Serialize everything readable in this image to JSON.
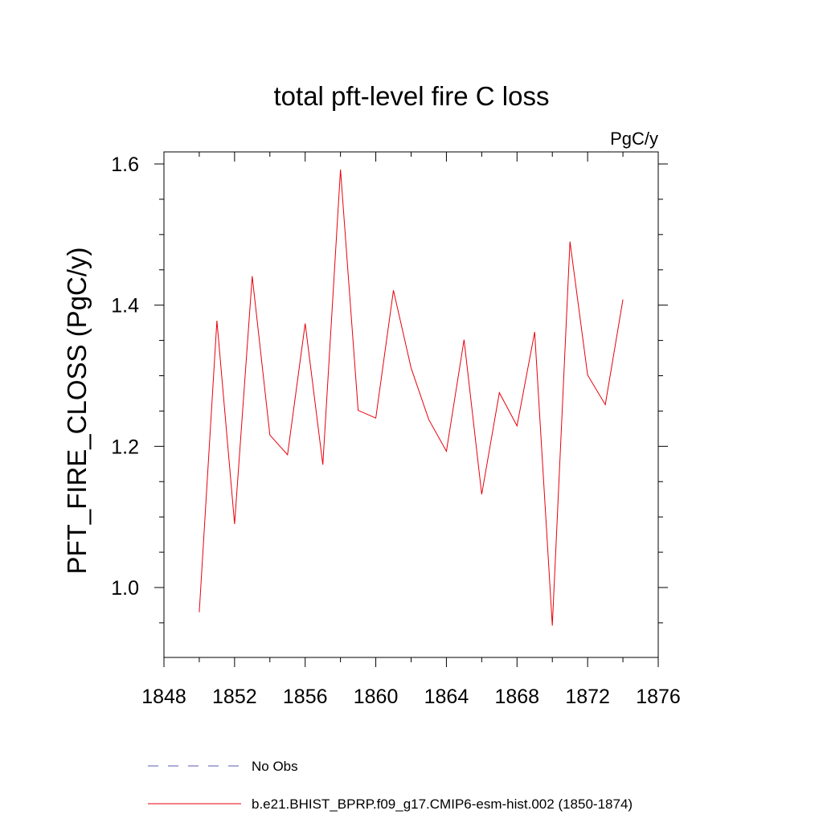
{
  "chart_data": {
    "type": "line",
    "title": "total pft-level fire C loss",
    "units_label": "PgC/y",
    "xlabel": "",
    "ylabel": "PFT_FIRE_CLOSS  (PgC/y)",
    "xlim": [
      1848,
      1876
    ],
    "ylim": [
      0.9,
      1.62
    ],
    "x_ticks": [
      1848,
      1852,
      1856,
      1860,
      1864,
      1868,
      1872,
      1876
    ],
    "x_tick_labels": [
      "1848",
      "1852",
      "1856",
      "1860",
      "1864",
      "1868",
      "1872",
      "1876"
    ],
    "x_minor_ticks": [
      1850,
      1854,
      1858,
      1862,
      1866,
      1870,
      1874
    ],
    "y_ticks": [
      1.0,
      1.2,
      1.4,
      1.6
    ],
    "y_tick_labels": [
      "1.0",
      "1.2",
      "1.4",
      "1.6"
    ],
    "y_minor_ticks": [
      0.95,
      1.05,
      1.1,
      1.15,
      1.25,
      1.3,
      1.35,
      1.45,
      1.5,
      1.55
    ],
    "grid": false,
    "legend_position": "bottom",
    "series": [
      {
        "name": "No Obs",
        "color": "#5a5ab4",
        "dash": "dashed",
        "x": [],
        "values": []
      },
      {
        "name": "b.e21.BHIST_BPRP.f09_g17.CMIP6-esm-hist.002 (1850-1874)",
        "color": "#e8000b",
        "dash": "solid",
        "x": [
          1850,
          1851,
          1852,
          1853,
          1854,
          1855,
          1856,
          1857,
          1858,
          1859,
          1860,
          1861,
          1862,
          1863,
          1864,
          1865,
          1866,
          1867,
          1868,
          1869,
          1870,
          1871,
          1872,
          1873,
          1874
        ],
        "values": [
          0.965,
          1.378,
          1.09,
          1.441,
          1.216,
          1.188,
          1.374,
          1.174,
          1.592,
          1.251,
          1.24,
          1.421,
          1.311,
          1.238,
          1.193,
          1.351,
          1.132,
          1.276,
          1.229,
          1.362,
          0.946,
          1.49,
          1.301,
          1.259,
          1.408
        ]
      }
    ]
  }
}
